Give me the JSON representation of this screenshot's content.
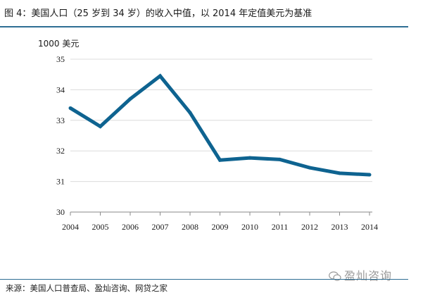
{
  "header": {
    "title": "图 4：美国人口（25 岁到 34 岁）的收入中值，以 2014 年定值美元为基准"
  },
  "footer": {
    "source": "来源：美国人口普查局、盈灿咨询、网贷之家",
    "watermark": "盈灿咨询"
  },
  "colors": {
    "line": "#0e6390",
    "rule": "#2e6e94",
    "grid": "#dcdcdc"
  },
  "chart_data": {
    "type": "line",
    "title": "图 4：美国人口（25 岁到 34 岁）的收入中值，以 2014 年定值美元为基准",
    "ylabel": "1000 美元",
    "xlabel": "",
    "ylim": [
      30,
      35
    ],
    "yticks": [
      "30",
      "31",
      "32",
      "33",
      "34",
      "35"
    ],
    "categories": [
      "2004",
      "2005",
      "2006",
      "2007",
      "2008",
      "2009",
      "2010",
      "2011",
      "2012",
      "2013",
      "2014"
    ],
    "series": [
      {
        "name": "收入中值",
        "values": [
          33.4,
          32.8,
          33.7,
          34.45,
          33.25,
          31.7,
          31.77,
          31.72,
          31.45,
          31.27,
          31.22
        ]
      }
    ],
    "grid": true,
    "legend": "none"
  }
}
